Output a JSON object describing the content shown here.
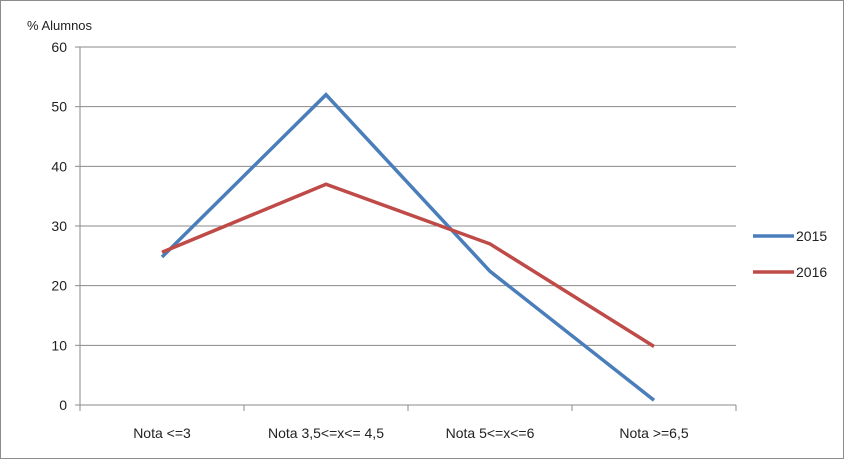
{
  "chart_data": {
    "type": "line",
    "title": "",
    "ylabel": "% Alumnos",
    "xlabel": "",
    "categories": [
      "Nota <=3",
      "Nota 3,5<=x<= 4,5",
      "Nota 5<=x<=6",
      "Nota >=6,5"
    ],
    "ylim": [
      0,
      60
    ],
    "yticks": [
      0,
      10,
      20,
      30,
      40,
      50,
      60
    ],
    "grid": true,
    "legend_position": "right",
    "series": [
      {
        "name": "2015",
        "values": [
          24.8,
          52.0,
          22.4,
          0.8
        ],
        "color": "#4a7ebb"
      },
      {
        "name": "2016",
        "values": [
          25.6,
          37.0,
          27.0,
          9.8
        ],
        "color": "#be4b48"
      }
    ]
  }
}
